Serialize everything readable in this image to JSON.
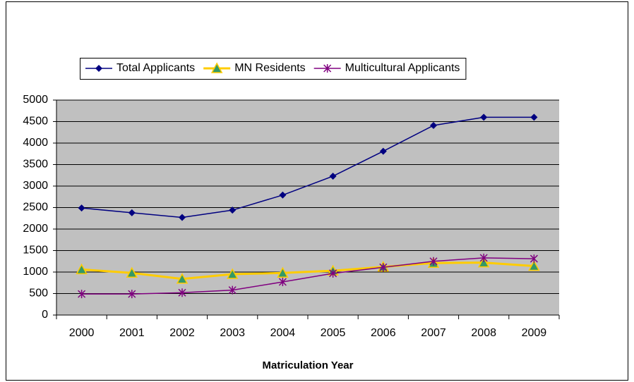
{
  "chart_data": {
    "type": "line",
    "x_label": "Matriculation Year",
    "categories": [
      "2000",
      "2001",
      "2002",
      "2003",
      "2004",
      "2005",
      "2006",
      "2007",
      "2008",
      "2009"
    ],
    "series": [
      {
        "name": "Total Applicants",
        "color": "#000080",
        "marker": "diamond",
        "values": [
          2490,
          2380,
          2270,
          2440,
          2790,
          3230,
          3810,
          4410,
          4600,
          4600
        ]
      },
      {
        "name": "MN Residents",
        "color": "#ffcc00",
        "marker": "triangle",
        "marker_color": "#339966",
        "values": [
          1060,
          980,
          840,
          950,
          980,
          1030,
          1120,
          1210,
          1220,
          1140
        ]
      },
      {
        "name": "Multicultural Applicants",
        "color": "#800080",
        "marker": "asterisk",
        "values": [
          490,
          490,
          520,
          580,
          770,
          970,
          1110,
          1250,
          1330,
          1310
        ]
      }
    ],
    "ylim": [
      0,
      5000
    ],
    "yticks": [
      0,
      500,
      1000,
      1500,
      2000,
      2500,
      3000,
      3500,
      4000,
      4500,
      5000
    ],
    "grid": true,
    "plot_background": "#c0c0c0",
    "legend": "top"
  }
}
